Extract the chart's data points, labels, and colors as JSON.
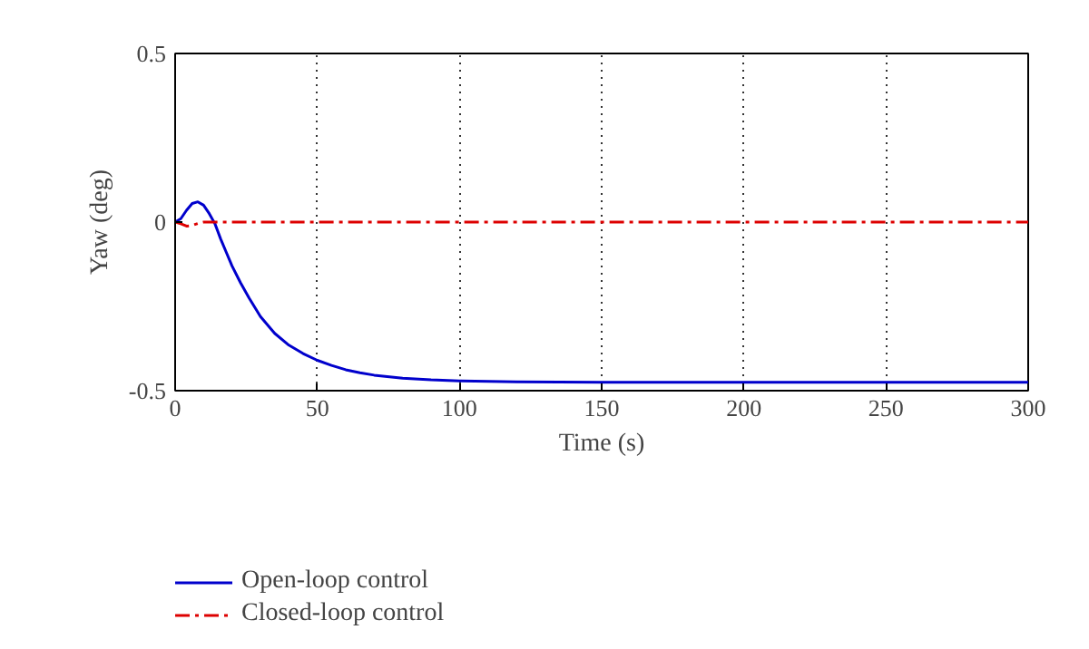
{
  "chart_data": {
    "type": "line",
    "xlabel": "Time (s)",
    "ylabel": "Yaw (deg)",
    "xlim": [
      0,
      300
    ],
    "ylim": [
      -0.5,
      0.5
    ],
    "xticks": [
      0,
      50,
      100,
      150,
      200,
      250,
      300
    ],
    "yticks": [
      -0.5,
      0,
      0.5
    ],
    "grid": "x",
    "legend": "bottom left",
    "marker": "none",
    "series": [
      {
        "name": "Open-loop control",
        "color": "#0000cc",
        "line_style": "solid",
        "x": [
          0,
          2,
          4,
          6,
          8,
          10,
          12,
          14,
          16,
          18,
          20,
          23,
          26,
          30,
          35,
          40,
          45,
          50,
          55,
          60,
          65,
          70,
          80,
          90,
          100,
          120,
          150,
          200,
          250,
          300
        ],
        "values": [
          0,
          0.01,
          0.035,
          0.055,
          0.06,
          0.05,
          0.025,
          -0.005,
          -0.05,
          -0.09,
          -0.13,
          -0.18,
          -0.225,
          -0.28,
          -0.33,
          -0.365,
          -0.39,
          -0.41,
          -0.425,
          -0.438,
          -0.447,
          -0.454,
          -0.463,
          -0.468,
          -0.471,
          -0.474,
          -0.475,
          -0.475,
          -0.475,
          -0.475
        ]
      },
      {
        "name": "Closed-loop control",
        "color": "#dd0000",
        "line_style": "dashdot",
        "x": [
          0,
          2,
          4,
          6,
          8,
          10,
          14,
          20,
          50,
          100,
          150,
          200,
          250,
          300
        ],
        "values": [
          0,
          -0.005,
          -0.012,
          -0.01,
          -0.004,
          0,
          0,
          0,
          0,
          0,
          0,
          0,
          0,
          0
        ]
      }
    ]
  }
}
